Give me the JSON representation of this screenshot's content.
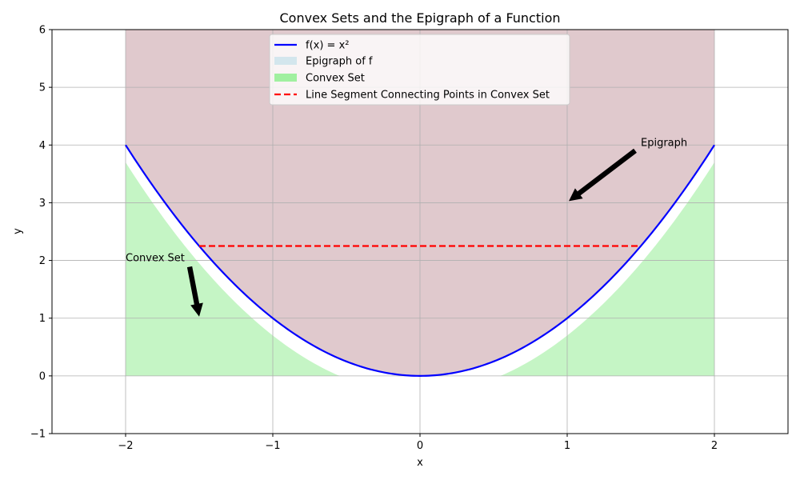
{
  "chart_data": {
    "type": "line",
    "title": "Convex Sets and the Epigraph of a Function",
    "xlabel": "x",
    "ylabel": "y",
    "xlim": [
      -2.5,
      2.5
    ],
    "ylim": [
      -1,
      6
    ],
    "xticks": [
      -2,
      -1,
      0,
      1,
      2
    ],
    "yticks": [
      -1,
      0,
      1,
      2,
      3,
      4,
      5,
      6
    ],
    "grid": true,
    "legend_position": "top-center",
    "series": [
      {
        "name": "f(x) = x²",
        "kind": "line",
        "function": "x^2",
        "x_range": [
          -2,
          2
        ],
        "color": "#0000ff"
      },
      {
        "name": "Epigraph of f",
        "kind": "fill_between",
        "lower": "x^2",
        "upper": 6,
        "x_range": [
          -2,
          2
        ],
        "color": "#add8e6",
        "opacity": 0.5
      },
      {
        "name": "Convex Set",
        "kind": "fill_between",
        "lower": 0,
        "upper": "max(0, x^2 - 0.3)",
        "x_range": [
          -2,
          2
        ],
        "color": "#90ee90",
        "opacity": 0.5
      },
      {
        "name": "Line Segment Connecting Points in Convex Set",
        "kind": "dashed_line",
        "x": [
          -1.5,
          1.5
        ],
        "y": [
          2.25,
          2.25
        ],
        "color": "#ff0000"
      }
    ],
    "annotations": [
      {
        "text": "Epigraph",
        "text_xy": [
          1.5,
          4
        ],
        "arrow_to": [
          1,
          3
        ]
      },
      {
        "text": "Convex Set",
        "text_xy": [
          -2,
          2
        ],
        "arrow_to": [
          -1.5,
          1
        ]
      }
    ]
  },
  "colors": {
    "epigraph_render": "#e0c9cd",
    "convex_render": "#c5f5c5",
    "curve": "#0000ff",
    "segment": "#ff0000",
    "grid": "#b0b0b0"
  }
}
